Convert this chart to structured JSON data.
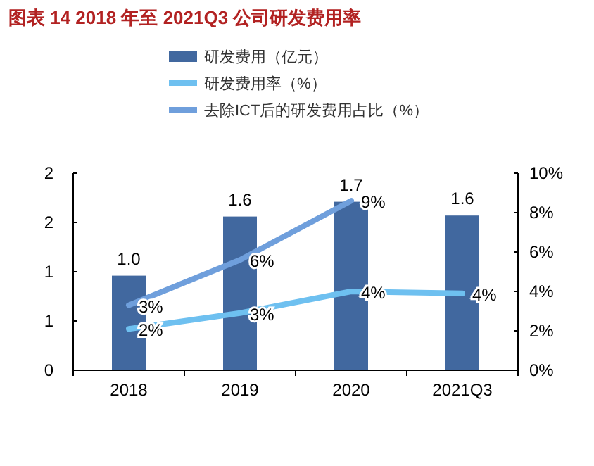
{
  "chart_data": {
    "type": "bar",
    "title": "图表 14 2018 年至 2021Q3 公司研发费用率",
    "categories": [
      "2018",
      "2019",
      "2020",
      "2021Q3"
    ],
    "series": [
      {
        "name": "研发费用（亿元）",
        "color": "#41689f",
        "values": [
          0.96,
          1.56,
          1.71,
          1.57
        ],
        "value_labels": [
          "1.0",
          "1.6",
          "1.7",
          "1.6"
        ]
      },
      {
        "name": "研发费用率（%）",
        "type": "line",
        "axis": "y2",
        "color": "#6ec0f0",
        "values": [
          2.1,
          2.9,
          4.0,
          3.9
        ],
        "value_labels": [
          "2%",
          "3%",
          "4%",
          "4%"
        ]
      },
      {
        "name": "去除ICT后的研发费用占比（%）",
        "type": "line",
        "axis": "y2",
        "color": "#6f9fdc",
        "values": [
          3.3,
          5.6,
          8.6,
          null
        ],
        "value_labels": [
          "3%",
          "6%",
          "9%",
          null
        ]
      }
    ],
    "ylim": [
      0,
      2
    ],
    "yticks": [
      0,
      {
        "value": 0.5,
        "label": "1"
      },
      1,
      {
        "value": 1.5,
        "label": "2"
      },
      2
    ],
    "y2lim": [
      0,
      10
    ],
    "y2ticks": [
      {
        "value": 0,
        "label": "0%"
      },
      {
        "value": 2,
        "label": "2%"
      },
      {
        "value": 4,
        "label": "4%"
      },
      {
        "value": 6,
        "label": "6%"
      },
      {
        "value": 8,
        "label": "8%"
      },
      {
        "value": 10,
        "label": "10%"
      }
    ],
    "legend": "top",
    "grid": false
  }
}
